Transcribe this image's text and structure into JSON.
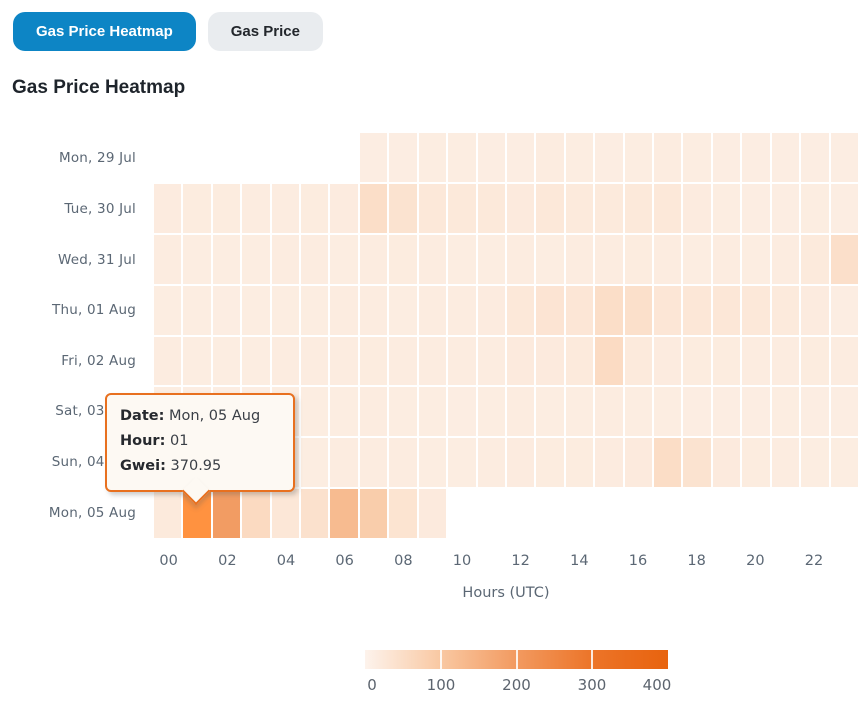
{
  "tabs": [
    {
      "label": "Gas Price Heatmap",
      "active": true
    },
    {
      "label": "Gas Price",
      "active": false
    }
  ],
  "title": "Gas Price Heatmap",
  "tooltip": {
    "date_label": "Date:",
    "date_value": "Mon, 05 Aug",
    "hour_label": "Hour:",
    "hour_value": "01",
    "gwei_label": "Gwei:",
    "gwei_value": "370.95"
  },
  "colors": {
    "active_tab_bg": "#0d85c5",
    "inactive_tab_bg": "#e9ecef",
    "tooltip_border": "#e8701f",
    "tooltip_bg": "#fdf9f3",
    "label_gray": "#5b6774"
  },
  "chart_data": {
    "type": "heatmap",
    "title": "Gas Price Heatmap",
    "xlabel": "Hours (UTC)",
    "ylabel": "",
    "x_tick_labels": [
      "00",
      "02",
      "04",
      "06",
      "08",
      "10",
      "12",
      "14",
      "16",
      "18",
      "20",
      "22"
    ],
    "hours_per_row": 24,
    "value_unit": "Gwei",
    "rows": [
      {
        "label": "Mon, 29 Jul",
        "values": [
          null,
          null,
          null,
          null,
          null,
          null,
          null,
          14,
          14,
          15,
          15,
          14,
          14,
          16,
          15,
          14,
          15,
          16,
          15,
          14,
          14,
          13,
          14,
          13
        ]
      },
      {
        "label": "Tue, 30 Jul",
        "values": [
          18,
          17,
          17,
          16,
          16,
          17,
          18,
          48,
          38,
          26,
          24,
          24,
          20,
          26,
          22,
          22,
          24,
          26,
          18,
          15,
          14,
          14,
          15,
          14
        ]
      },
      {
        "label": "Wed, 31 Jul",
        "values": [
          16,
          15,
          15,
          15,
          16,
          16,
          15,
          16,
          17,
          16,
          15,
          15,
          16,
          15,
          16,
          16,
          17,
          16,
          15,
          16,
          15,
          16,
          22,
          46
        ]
      },
      {
        "label": "Thu, 01 Aug",
        "values": [
          15,
          15,
          14,
          15,
          15,
          15,
          16,
          16,
          15,
          16,
          16,
          18,
          26,
          34,
          30,
          48,
          44,
          30,
          28,
          28,
          26,
          22,
          18,
          14
        ]
      },
      {
        "label": "Fri, 02 Aug",
        "values": [
          16,
          15,
          15,
          15,
          16,
          16,
          16,
          17,
          16,
          16,
          16,
          16,
          20,
          20,
          22,
          55,
          22,
          18,
          17,
          17,
          16,
          16,
          17,
          16
        ]
      },
      {
        "label": "Sat, 03 Aug",
        "values": [
          15,
          14,
          14,
          14,
          15,
          15,
          15,
          16,
          15,
          15,
          14,
          15,
          16,
          15,
          15,
          16,
          15,
          15,
          14,
          14,
          14,
          15,
          14,
          14
        ]
      },
      {
        "label": "Sun, 04 Aug",
        "values": [
          14,
          14,
          15,
          15,
          15,
          15,
          16,
          16,
          16,
          15,
          15,
          16,
          18,
          17,
          17,
          18,
          20,
          52,
          38,
          20,
          17,
          16,
          15,
          15
        ]
      },
      {
        "label": "Mon, 05 Aug",
        "values": [
          22,
          370.95,
          195,
          58,
          28,
          42,
          128,
          88,
          36,
          20,
          null,
          null,
          null,
          null,
          null,
          null,
          null,
          null,
          null,
          null,
          null,
          null,
          null,
          null
        ]
      }
    ],
    "colorscale": {
      "min": 0,
      "max": 400,
      "stops": [
        [
          0,
          "#fdf3ec"
        ],
        [
          100,
          "#f9c8a2"
        ],
        [
          200,
          "#f29a60"
        ],
        [
          300,
          "#ec7428"
        ],
        [
          400,
          "#e8630e"
        ]
      ],
      "tick_labels": [
        "0",
        "100",
        "200",
        "300",
        "400"
      ]
    },
    "hovered_cell": {
      "row_index": 7,
      "hour": 1,
      "gwei": 370.95
    },
    "legend_position": "bottom",
    "grid": false
  }
}
